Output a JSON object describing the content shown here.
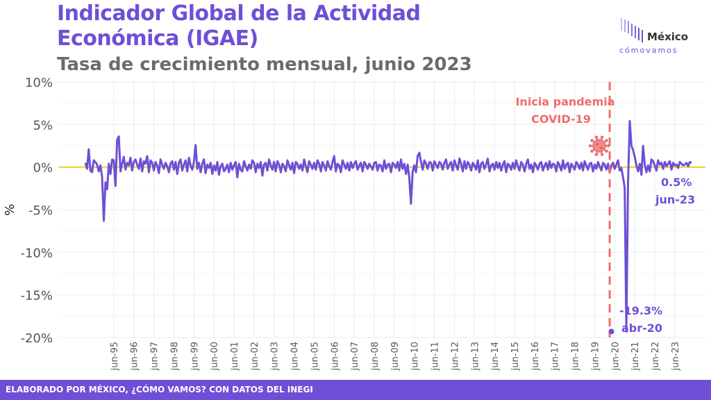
{
  "title_line1": "Indicador Global de la Actividad",
  "title_line2": "Económica (IGAE)",
  "subtitle": "Tasa de crecimiento mensual, junio 2023",
  "logo": {
    "word": "México",
    "sub": "cómovamos"
  },
  "footer": "ELABORADO POR MÉXICO, ¿CÓMO VAMOS? CON DATOS DEL INEGI",
  "colors": {
    "line": "#6e4fd6",
    "zero": "#e6d21e",
    "pandemic": "#f26b6b",
    "grid": "#ebebeb"
  },
  "chart_data": {
    "type": "line",
    "ylabel": "%",
    "ylim": [
      -20,
      10
    ],
    "y_ticks": [
      10,
      5,
      0,
      -5,
      -10,
      -15,
      -20
    ],
    "y_tick_labels": [
      "10%",
      "5%",
      "0%",
      "-5%",
      "-10%",
      "-15%",
      "-20%"
    ],
    "x_tick_labels": [
      "jun-95",
      "jun-96",
      "jun-97",
      "jun-98",
      "jun-99",
      "jun-00",
      "jun-01",
      "jun-02",
      "jun-03",
      "jun-04",
      "jun-05",
      "jun-06",
      "jun-07",
      "jun-08",
      "jun-09",
      "jun-10",
      "jun-11",
      "jun-12",
      "jun-13",
      "jun-14",
      "jun-15",
      "jun-16",
      "jun-17",
      "jun-18",
      "jun-19",
      "jun-20",
      "jun-21",
      "jun-22",
      "jun-23"
    ],
    "x_start": "1994-01",
    "series": [
      {
        "values": [
          0.5,
          -0.2,
          2.1,
          -0.4,
          -0.6,
          0.8,
          0.6,
          0.3,
          -0.5,
          0.2,
          -1.1,
          -6.3,
          -1.8,
          -2.6,
          0.4,
          -0.8,
          0.9,
          0.8,
          -2.2,
          3.2,
          3.6,
          -0.5,
          0.4,
          1.2,
          -0.3,
          0.5,
          0.2,
          1.1,
          -0.4,
          0.6,
          0.9,
          0.3,
          -0.2,
          1.0,
          -0.5,
          0.7,
          0.4,
          1.3,
          -0.6,
          0.8,
          0.5,
          -0.4,
          0.6,
          0.2,
          -0.7,
          0.9,
          0.3,
          -0.2,
          0.5,
          0.1,
          -0.6,
          0.4,
          0.7,
          -0.3,
          0.6,
          -0.8,
          0.5,
          0.9,
          -0.4,
          0.3,
          0.8,
          -0.5,
          1.1,
          0.2,
          -0.3,
          0.6,
          2.6,
          -0.2,
          0.5,
          -0.6,
          0.4,
          0.9,
          -0.7,
          0.3,
          -0.1,
          0.5,
          -0.8,
          0.2,
          -0.4,
          0.6,
          -0.9,
          0.1,
          0.4,
          -0.5,
          -0.2,
          0.3,
          -0.6,
          0.5,
          -0.3,
          0.2,
          0.6,
          -1.2,
          0.4,
          -0.3,
          -0.5,
          0.7,
          0.1,
          -0.4,
          0.3,
          -0.2,
          0.8,
          0.5,
          -0.6,
          0.4,
          -0.1,
          0.6,
          -1.0,
          0.3,
          0.5,
          -0.4,
          0.9,
          0.2,
          -0.3,
          0.6,
          -0.5,
          0.7,
          0.3,
          -0.6,
          0.4,
          0.1,
          -0.5,
          0.8,
          0.2,
          -0.3,
          0.5,
          -0.7,
          0.6,
          0.4,
          -0.2,
          0.3,
          -0.4,
          0.9,
          0.1,
          -0.6,
          0.7,
          0.3,
          -0.2,
          0.5,
          -0.3,
          0.8,
          0.4,
          -0.5,
          0.6,
          0.2,
          -0.4,
          0.7,
          0.1,
          -0.3,
          0.6,
          1.3,
          -0.5,
          0.4,
          0.2,
          -0.6,
          0.8,
          0.3,
          -0.2,
          0.5,
          -0.4,
          0.6,
          -0.1,
          0.4,
          0.7,
          -0.3,
          0.2,
          0.5,
          -0.5,
          0.6,
          0.3,
          -0.2,
          0.4,
          0.1,
          -0.3,
          0.5,
          0.6,
          -0.4,
          0.3,
          0.2,
          -0.5,
          0.8,
          -0.2,
          0.3,
          0.4,
          -0.6,
          0.5,
          0.3,
          -0.1,
          0.6,
          -0.4,
          0.9,
          -0.2,
          0.4,
          -0.8,
          0.3,
          -1.3,
          -4.3,
          -0.5,
          0.2,
          -0.6,
          1.3,
          1.7,
          0.6,
          -0.3,
          0.8,
          0.4,
          -0.2,
          0.6,
          0.5,
          -0.4,
          0.7,
          0.3,
          -0.1,
          0.6,
          0.4,
          -0.3,
          0.5,
          0.9,
          -0.2,
          0.3,
          0.6,
          -0.4,
          0.8,
          0.2,
          -0.3,
          1.0,
          0.4,
          -0.5,
          0.7,
          -0.2,
          0.6,
          0.3,
          -0.4,
          0.5,
          0.2,
          -0.3,
          0.8,
          -0.6,
          0.4,
          0.6,
          -0.2,
          0.3,
          1.0,
          -0.5,
          0.2,
          0.4,
          -0.3,
          0.6,
          -0.1,
          0.5,
          -0.4,
          0.3,
          0.7,
          -0.6,
          0.4,
          0.2,
          -0.3,
          0.5,
          -0.2,
          0.8,
          0.1,
          -0.4,
          0.6,
          0.3,
          -0.5,
          0.4,
          0.9,
          -0.2,
          0.3,
          -0.6,
          0.5,
          0.2,
          -0.3,
          0.4,
          0.6,
          -0.4,
          0.2,
          0.5,
          -0.3,
          0.7,
          -0.1,
          0.4,
          0.3,
          -0.5,
          0.6,
          0.2,
          -0.4,
          0.8,
          -0.2,
          0.3,
          0.5,
          -0.6,
          0.4,
          0.1,
          -0.3,
          0.6,
          0.3,
          -0.2,
          0.5,
          -0.4,
          0.7,
          0.2,
          -0.3,
          0.4,
          0.5,
          -0.5,
          0.3,
          -0.2,
          0.6,
          0.1,
          -0.4,
          0.5,
          0.3,
          -0.3,
          0.4,
          -0.6,
          0.2,
          0.5,
          -0.2,
          0.3,
          0.8,
          -0.4,
          -0.1,
          -1.2,
          -2.4,
          -19.3,
          -1.8,
          5.4,
          2.5,
          2.0,
          1.2,
          0.2,
          -0.5,
          0.4,
          -0.9,
          2.5,
          0.3,
          -0.6,
          0.2,
          -0.5,
          0.9,
          0.7,
          0.2,
          -0.4,
          0.8,
          0.3,
          0.5,
          -0.2,
          0.6,
          0.1,
          0.4,
          0.7,
          -0.3,
          0.5,
          0.2,
          0.3,
          -0.1,
          0.6,
          0.4,
          0.2,
          0.3,
          0.5,
          0.1,
          0.6,
          0.5
        ],
        "color": "#6e4fd6"
      }
    ],
    "annotations": [
      {
        "text_line1": "Inicia pandemia",
        "text_line2": "COVID-19",
        "at": "2020-03"
      },
      {
        "value_label": "-19.3%",
        "date_label": "abr-20",
        "x": "2020-04",
        "y": -19.3
      },
      {
        "value_label": "0.5%",
        "date_label": "jun-23",
        "x": "2023-06",
        "y": 0.5
      }
    ],
    "zero_line": true,
    "grid": true
  }
}
